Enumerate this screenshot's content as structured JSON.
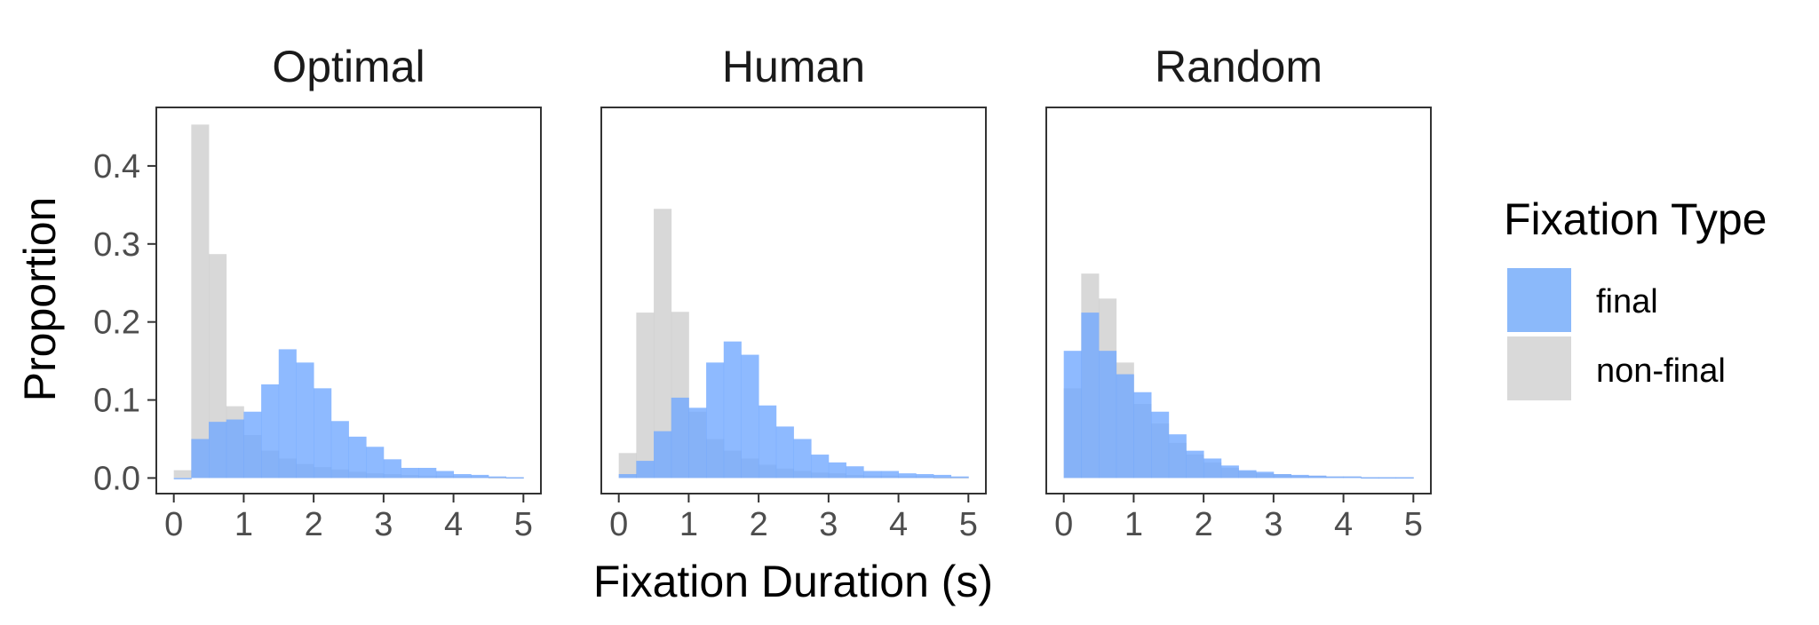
{
  "chart_data": {
    "type": "histogram",
    "xlabel": "Fixation Duration (s)",
    "ylabel": "Proportion",
    "xlim": [
      -0.25,
      5.25
    ],
    "ylim": [
      -0.02,
      0.475
    ],
    "bin_width": 0.25,
    "bin_start": 0,
    "x_ticks": [
      "0",
      "1",
      "2",
      "3",
      "4",
      "5"
    ],
    "y_ticks": [
      "0.0",
      "0.1",
      "0.2",
      "0.3",
      "0.4"
    ],
    "y_tick_values": [
      0.0,
      0.1,
      0.2,
      0.3,
      0.4
    ],
    "legend": {
      "title": "Fixation Type",
      "entries": [
        {
          "label": "final",
          "color": "#6ea6ff"
        },
        {
          "label": "non-final",
          "color": "#c8c8c8"
        }
      ]
    },
    "panels": [
      {
        "title": "Optimal",
        "series": [
          {
            "name": "non-final",
            "values": [
              0.01,
              0.453,
              0.287,
              0.092,
              0.055,
              0.035,
              0.025,
              0.018,
              0.014,
              0.011,
              0.008,
              0.006,
              0.005,
              0.004,
              0.003,
              0.003,
              0.002,
              0.002,
              0.001,
              0.001
            ]
          },
          {
            "name": "final",
            "values": [
              0.0,
              0.05,
              0.072,
              0.075,
              0.085,
              0.12,
              0.165,
              0.148,
              0.115,
              0.073,
              0.053,
              0.04,
              0.024,
              0.013,
              0.013,
              0.009,
              0.005,
              0.004,
              0.002,
              0.001
            ]
          }
        ]
      },
      {
        "title": "Human",
        "series": [
          {
            "name": "non-final",
            "values": [
              0.032,
              0.212,
              0.345,
              0.213,
              0.085,
              0.05,
              0.035,
              0.025,
              0.017,
              0.012,
              0.009,
              0.007,
              0.006,
              0.004,
              0.003,
              0.003,
              0.002,
              0.002,
              0.001,
              0.001
            ]
          },
          {
            "name": "final",
            "values": [
              0.005,
              0.022,
              0.06,
              0.103,
              0.09,
              0.148,
              0.175,
              0.158,
              0.093,
              0.066,
              0.05,
              0.03,
              0.02,
              0.015,
              0.009,
              0.009,
              0.006,
              0.005,
              0.004,
              0.002
            ]
          }
        ]
      },
      {
        "title": "Random",
        "series": [
          {
            "name": "non-final",
            "values": [
              0.115,
              0.262,
              0.23,
              0.148,
              0.095,
              0.07,
              0.045,
              0.03,
              0.02,
              0.013,
              0.009,
              0.006,
              0.005,
              0.003,
              0.003,
              0.002,
              0.002,
              0.001,
              0.001,
              0.001
            ]
          },
          {
            "name": "final",
            "values": [
              0.163,
              0.212,
              0.163,
              0.133,
              0.11,
              0.085,
              0.056,
              0.035,
              0.025,
              0.016,
              0.01,
              0.008,
              0.005,
              0.004,
              0.003,
              0.002,
              0.002,
              0.001,
              0.001,
              0.001
            ]
          }
        ]
      }
    ]
  }
}
